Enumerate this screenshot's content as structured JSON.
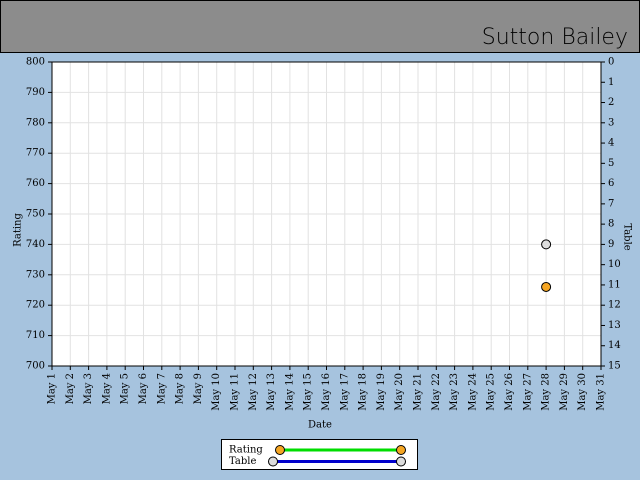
{
  "chart_data": {
    "type": "line",
    "title": "Sutton Bailey",
    "x_label": "Date",
    "y_label": "Rating",
    "y2_label": "Table",
    "categories": [
      "May 1",
      "May 2",
      "May 3",
      "May 4",
      "May 5",
      "May 6",
      "May 7",
      "May 8",
      "May 9",
      "May 10",
      "May 11",
      "May 12",
      "May 13",
      "May 14",
      "May 15",
      "May 16",
      "May 17",
      "May 18",
      "May 19",
      "May 20",
      "May 21",
      "May 22",
      "May 23",
      "May 24",
      "May 25",
      "May 26",
      "May 27",
      "May 28",
      "May 29",
      "May 30",
      "May 31"
    ],
    "series": [
      {
        "name": "Rating",
        "color": "#00dd00",
        "marker_color": "#f5a623",
        "values": [
          null,
          null,
          null,
          null,
          null,
          null,
          null,
          null,
          null,
          null,
          null,
          null,
          null,
          null,
          null,
          null,
          null,
          null,
          null,
          null,
          null,
          null,
          null,
          null,
          null,
          null,
          null,
          726,
          null,
          null,
          null
        ]
      },
      {
        "name": "Table",
        "color": "#0000cc",
        "marker_color": "#dddddd",
        "axis": "y2",
        "values": [
          null,
          null,
          null,
          null,
          null,
          null,
          null,
          null,
          null,
          null,
          null,
          null,
          null,
          null,
          null,
          null,
          null,
          null,
          null,
          null,
          null,
          null,
          null,
          null,
          null,
          null,
          null,
          9,
          null,
          null,
          null
        ]
      }
    ],
    "ylim": [
      700,
      800
    ],
    "yticks": [
      700,
      710,
      720,
      730,
      740,
      750,
      760,
      770,
      780,
      790,
      800
    ],
    "y2lim": [
      0,
      15
    ],
    "y2_inverted": true,
    "y2ticks": [
      0,
      1,
      2,
      3,
      4,
      5,
      6,
      7,
      8,
      9,
      10,
      11,
      12,
      13,
      14,
      15
    ],
    "grid": true
  }
}
